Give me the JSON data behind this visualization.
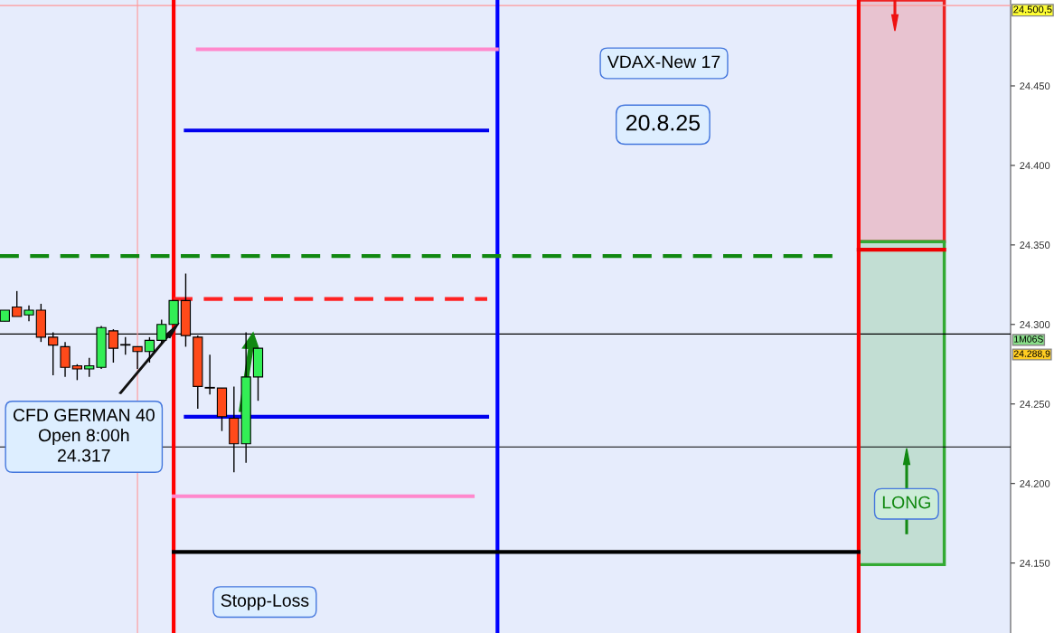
{
  "chart_data": {
    "type": "candlestick",
    "categories": [
      null,
      null,
      null,
      null,
      null,
      null,
      null,
      null,
      null,
      null,
      null,
      null,
      null,
      null,
      null,
      null,
      null,
      null,
      null,
      null,
      null,
      null,
      null,
      null,
      null,
      null,
      null,
      null,
      null,
      null,
      null,
      null,
      null,
      null,
      null,
      null,
      null,
      null,
      null,
      null,
      null,
      null,
      null,
      null,
      null,
      null,
      null,
      null,
      null,
      null,
      null,
      null,
      null,
      null,
      null,
      null,
      null,
      null,
      null,
      null,
      null,
      null,
      null,
      null,
      null,
      null,
      null,
      null,
      null,
      null,
      null,
      null,
      null,
      null,
      null,
      null,
      null,
      null,
      null,
      null,
      null,
      null,
      null,
      null
    ],
    "ohlc": [
      [
        24302,
        24309,
        24302,
        24309
      ],
      [
        24311,
        24321,
        24305,
        24305
      ],
      [
        24306,
        24312,
        24302,
        24309
      ],
      [
        24309,
        24313,
        24289,
        24292
      ],
      [
        24292,
        24295,
        24268,
        24287
      ],
      [
        24286,
        24289,
        24267,
        24273
      ],
      [
        24274,
        24275,
        24265,
        24272
      ],
      [
        24272,
        24279,
        24267,
        24274
      ],
      [
        24273,
        24299,
        24272,
        24298
      ],
      [
        24296,
        24297,
        24276,
        24285
      ],
      [
        24287,
        24292,
        24281,
        24287
      ],
      [
        24286,
        24286,
        24272,
        24283
      ],
      [
        24283,
        24292,
        24276,
        24290
      ],
      [
        24290,
        24303,
        24288,
        24300
      ],
      [
        24300,
        24315,
        24300,
        24315
      ],
      [
        24315,
        24332,
        24286,
        24293
      ],
      [
        24292,
        24293,
        24247,
        24261
      ],
      [
        24260,
        24281,
        24256,
        24260
      ],
      [
        24260,
        24260,
        24233,
        24242
      ],
      [
        24241,
        24261,
        24207,
        24225
      ],
      [
        24225,
        24295,
        24213,
        24267
      ],
      [
        24267,
        24285,
        24252,
        24285
      ],
      null,
      null,
      null,
      null,
      null,
      null,
      null,
      null,
      null,
      null,
      null,
      null,
      null,
      null,
      null,
      null,
      null,
      null,
      null,
      null,
      null,
      null,
      null,
      null,
      null,
      null,
      null,
      null,
      null,
      null,
      null,
      null,
      null,
      null,
      null,
      null,
      null,
      null,
      null,
      null,
      null,
      null,
      null,
      null,
      null,
      null,
      null,
      null,
      null,
      null,
      null,
      null,
      null,
      null,
      null,
      null,
      null,
      null,
      null,
      null,
      null,
      null
    ],
    "colors": [
      "#33ee55",
      "#ff4a1a",
      "#33ee55",
      "#ff4a1a",
      "#ff4a1a",
      "#ff4a1a",
      "#ff4a1a",
      "#33ee55",
      "#33ee55",
      "#ff4a1a",
      "#ff4a1a",
      "#ff4a1a",
      "#33ee55",
      "#33ee55",
      "#33ee55",
      "#ff4a1a",
      "#ff4a1a",
      "#ff4a1a",
      "#ff4a1a",
      "#ff4a1a",
      "#33ee55",
      "#33ee55",
      null,
      null,
      null,
      null,
      null,
      null,
      null,
      null,
      null,
      null,
      null,
      null,
      null,
      null,
      null,
      null,
      null,
      null,
      null,
      null,
      null,
      null,
      null,
      null,
      null,
      null,
      null,
      null,
      null,
      null,
      null,
      null,
      null,
      null,
      null,
      null,
      null,
      null,
      null,
      null,
      null,
      null,
      null,
      null,
      null,
      null,
      null,
      null,
      null,
      null,
      null,
      null,
      null,
      null,
      null,
      null,
      null,
      null,
      null,
      null,
      null,
      null
    ],
    "ylim": [
      24106,
      24504
    ],
    "yticks": [
      {
        "value": 24150,
        "label": "24.150"
      },
      {
        "value": 24200,
        "label": "24.200"
      },
      {
        "value": 24250,
        "label": "24.250"
      },
      {
        "value": 24300,
        "label": "24.300"
      },
      {
        "value": 24350,
        "label": "24.350"
      },
      {
        "value": 24400,
        "label": "24.400"
      },
      {
        "value": 24450,
        "label": "24.450"
      }
    ],
    "tick_labels": "y",
    "grid": false,
    "ref_lines": [
      {
        "axis": "y",
        "value": 24473,
        "color": "#ff88cc",
        "line_style": "solid"
      },
      {
        "axis": "y",
        "value": 24422,
        "color": "#0000ee",
        "line_style": "solid"
      },
      {
        "axis": "y",
        "value": 24343,
        "color": "#118811",
        "line_style": "dashed"
      },
      {
        "axis": "y",
        "value": 24316,
        "color": "#ff2222",
        "line_style": "dashed"
      },
      {
        "axis": "y",
        "value": 24242,
        "color": "#0000ee",
        "line_style": "solid"
      },
      {
        "axis": "y",
        "value": 24192,
        "color": "#ff88cc",
        "line_style": "solid"
      },
      {
        "axis": "y",
        "value": 24157,
        "color": "#000000",
        "line_style": "solid"
      },
      {
        "axis": "y",
        "value": 24347,
        "color": "#ee0000",
        "line_style": "solid"
      },
      {
        "axis": "y",
        "value": 24500.5,
        "label": "24.500,5",
        "color": "#ff9999"
      },
      {
        "axis": "y",
        "value": 24294,
        "color": "#000000"
      },
      {
        "axis": "y",
        "value": 24223,
        "color": "#000000"
      }
    ],
    "bands": [
      {
        "axis": "y",
        "from": 24352,
        "to": 24504,
        "color": "#ee2222"
      },
      {
        "axis": "y",
        "from": 24149,
        "to": 24352,
        "color": "#33aa33"
      }
    ],
    "annotations": [
      "VDAX-New 17",
      "20.8.25",
      "CFD GERMAN 40\nOpen 8:00h\n24.317",
      "Stopp-Loss",
      "LONG",
      "1M06S",
      "24.288,9"
    ]
  }
}
